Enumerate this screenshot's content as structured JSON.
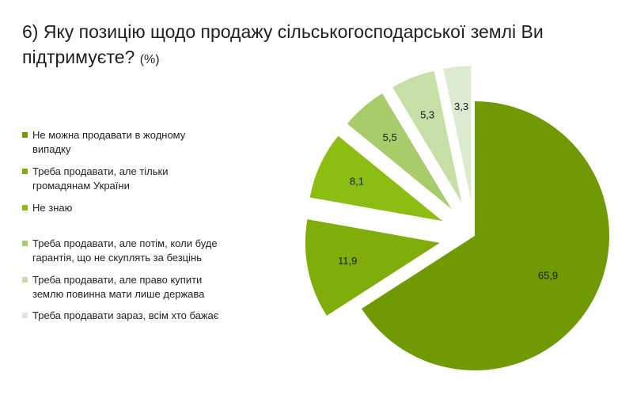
{
  "title": {
    "main": "6) Яку позицію щодо продажу сільськогосподарської землі Ви підтримуєте?",
    "unit": "(%)"
  },
  "chart_data": {
    "type": "pie",
    "title": "6) Яку позицію щодо продажу сільськогосподарської землі Ви підтримуєте?",
    "unit": "%",
    "legend_position": "left",
    "exploded": true,
    "slices": [
      {
        "label": "Не можна продавати в жодному випадку",
        "value": 65.9,
        "value_label": "65,9",
        "color": "#6f9a04"
      },
      {
        "label": "Треба продавати, але тільки громадянам України",
        "value": 11.9,
        "value_label": "11,9",
        "color": "#7fad09"
      },
      {
        "label": "Не знаю",
        "value": 8.1,
        "value_label": "8,1",
        "color": "#8cbd12"
      },
      {
        "label": "Треба продавати, але потім, коли буде гарантія, що не скуплять за безцінь",
        "value": 5.5,
        "value_label": "5,5",
        "color": "#a7cc6a"
      },
      {
        "label": "Треба продавати, але право купити землю повинна мати лише держава",
        "value": 5.3,
        "value_label": "5,3",
        "color": "#c5dfa6"
      },
      {
        "label": "Треба продавати зараз, всім хто бажає",
        "value": 3.3,
        "value_label": "3,3",
        "color": "#dcebd0"
      }
    ]
  },
  "legend": {
    "items": [
      {
        "line1": "Не можна продавати в жодному",
        "line2": "випадку"
      },
      {
        "line1": "Треба продавати, але тільки",
        "line2": "громадянам України"
      },
      {
        "line1": "Не знаю",
        "line2": ""
      },
      {
        "line1": "Треба продавати, але потім, коли буде",
        "line2": "гарантія, що не скуплять за безцінь"
      },
      {
        "line1": "Треба продавати, але право купити",
        "line2": "землю повинна мати лише держава"
      },
      {
        "line1": "Треба продавати зараз, всім хто бажає",
        "line2": ""
      }
    ]
  }
}
